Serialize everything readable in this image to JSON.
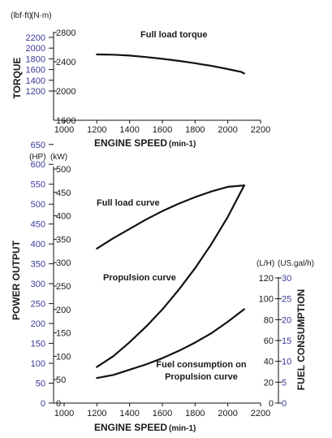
{
  "chart_data": [
    {
      "type": "line",
      "xlabel": "ENGINE SPEED",
      "xlabel_unit": "(min-1)",
      "x_ticks": [
        "1000",
        "1200",
        "1400",
        "1600",
        "1800",
        "2000",
        "2200"
      ],
      "xlim": [
        1000,
        2200
      ],
      "ylabel": "TORQUE",
      "y_units": [
        "(lbf·ft)",
        "(N·m)"
      ],
      "y_ticks_left": [
        "2200",
        "2000",
        "1800",
        "1600",
        "1400",
        "1200"
      ],
      "y_ticks_right": [
        "2800",
        "2400",
        "2000",
        "1600"
      ],
      "ylim_nm": [
        1600,
        2800
      ],
      "series": [
        {
          "name": "Full load torque",
          "x": [
            1200,
            1300,
            1400,
            1500,
            1600,
            1700,
            1800,
            1900,
            2000,
            2080,
            2100
          ],
          "y": [
            2500,
            2497,
            2485,
            2465,
            2440,
            2412,
            2380,
            2343,
            2300,
            2262,
            2240
          ]
        }
      ]
    },
    {
      "type": "line",
      "xlabel": "ENGINE SPEED",
      "xlabel_unit": "(min-1)",
      "x_ticks": [
        "1000",
        "1200",
        "1400",
        "1600",
        "1800",
        "2000",
        "2200"
      ],
      "xlim": [
        1000,
        2200
      ],
      "ylabel": "POWER OUTPUT",
      "y_units": [
        "(HP)",
        "(kW)"
      ],
      "y_ticks_left": [
        "650",
        "600",
        "550",
        "500",
        "450",
        "400",
        "350",
        "300",
        "250",
        "200",
        "150",
        "100",
        "50",
        "0"
      ],
      "y_ticks_kw": [
        "500",
        "450",
        "400",
        "350",
        "300",
        "250",
        "200",
        "150",
        "100",
        "50",
        "0"
      ],
      "ylim_kw": [
        0,
        500
      ],
      "ylabel_right": "FUEL CONSUMPTION",
      "y_units_right": [
        "(L/H)",
        "(US.gal/h)"
      ],
      "y_ticks_lh": [
        "120",
        "100",
        "80",
        "60",
        "40",
        "20",
        "0"
      ],
      "y_ticks_gal": [
        "30",
        "25",
        "20",
        "15",
        "10",
        "5",
        "0"
      ],
      "ylim_lh": [
        0,
        120
      ],
      "series": [
        {
          "name": "Full load curve",
          "axis": "kW",
          "x": [
            1200,
            1300,
            1400,
            1500,
            1600,
            1700,
            1800,
            1900,
            2000,
            2100
          ],
          "y": [
            330,
            352,
            372,
            392,
            410,
            426,
            440,
            452,
            462,
            465
          ]
        },
        {
          "name": "Propulsion curve",
          "axis": "kW",
          "x": [
            1200,
            1300,
            1400,
            1500,
            1600,
            1700,
            1800,
            1900,
            2000,
            2100
          ],
          "y": [
            77,
            100,
            130,
            163,
            200,
            242,
            288,
            340,
            398,
            465
          ]
        },
        {
          "name": "Fuel consumption on Propulsion curve",
          "axis": "L/H",
          "x": [
            1200,
            1300,
            1400,
            1500,
            1600,
            1700,
            1800,
            1900,
            2000,
            2100
          ],
          "y": [
            24,
            27,
            32,
            37,
            43,
            50,
            58,
            67,
            78,
            90
          ]
        }
      ]
    }
  ]
}
